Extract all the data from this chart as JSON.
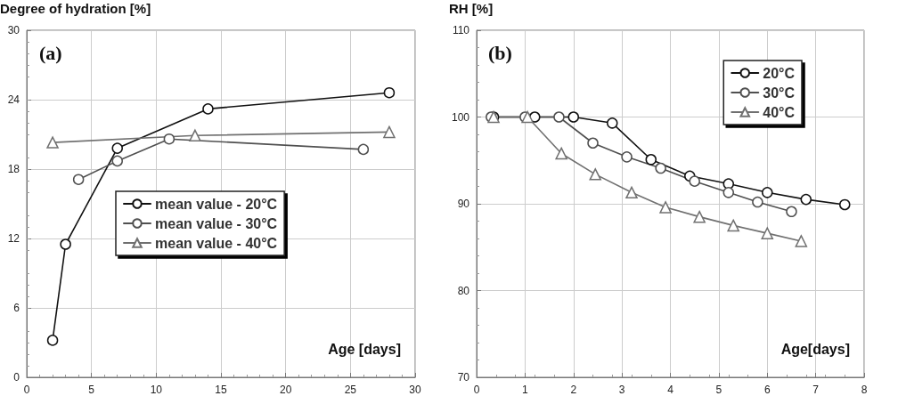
{
  "chart_data": [
    {
      "type": "line",
      "ylabel": "Degree of hydration [%]",
      "xlabel": "Age [days]",
      "annotations": [
        "(a)"
      ],
      "xlim": [
        0,
        30
      ],
      "xticks": [
        0,
        5,
        10,
        15,
        20,
        25,
        30
      ],
      "ylim": [
        0,
        30
      ],
      "yticks": [
        0,
        6,
        12,
        18,
        24,
        30
      ],
      "grid": true,
      "legend": "center",
      "line_style": "solid",
      "series": [
        {
          "name": "mean value - 20°C",
          "color": "#111111",
          "marker": "circle",
          "x": [
            2,
            3,
            7,
            14,
            28
          ],
          "values": [
            3.2,
            11.5,
            19.8,
            23.2,
            24.6
          ]
        },
        {
          "name": "mean value - 30°C",
          "color": "#505050",
          "marker": "circle",
          "x": [
            4,
            7,
            11,
            26
          ],
          "values": [
            17.1,
            18.7,
            20.6,
            19.7
          ]
        },
        {
          "name": "mean value - 40°C",
          "color": "#707070",
          "marker": "triangle",
          "x": [
            2,
            13,
            28
          ],
          "values": [
            20.3,
            20.9,
            21.2
          ]
        }
      ]
    },
    {
      "type": "line",
      "ylabel": "RH [%]",
      "xlabel": "Age[days]",
      "annotations": [
        "(b)"
      ],
      "xlim": [
        0,
        8
      ],
      "xticks": [
        0,
        1,
        2,
        3,
        4,
        5,
        6,
        7,
        8
      ],
      "ylim": [
        70,
        110
      ],
      "yticks": [
        70,
        80,
        90,
        100,
        110
      ],
      "grid": true,
      "legend": "top right",
      "line_style": "solid",
      "series": [
        {
          "name": "20°C",
          "color": "#111111",
          "marker": "circle",
          "x": [
            0.35,
            1.2,
            2.0,
            2.8,
            3.6,
            4.4,
            5.2,
            6.0,
            6.8,
            7.6
          ],
          "values": [
            100,
            100,
            100,
            99.3,
            95.1,
            93.2,
            92.3,
            91.3,
            90.5,
            89.9
          ]
        },
        {
          "name": "30°C",
          "color": "#505050",
          "marker": "circle",
          "x": [
            0.3,
            1.0,
            1.7,
            2.4,
            3.1,
            3.8,
            4.5,
            5.2,
            5.8,
            6.5
          ],
          "values": [
            100,
            100,
            100,
            97.0,
            95.4,
            94.1,
            92.6,
            91.3,
            90.2,
            89.1
          ]
        },
        {
          "name": "40°C",
          "color": "#707070",
          "marker": "triangle",
          "x": [
            0.35,
            1.05,
            1.75,
            2.45,
            3.2,
            3.9,
            4.6,
            5.3,
            6.0,
            6.7
          ],
          "values": [
            100,
            100,
            95.8,
            93.4,
            91.3,
            89.6,
            88.5,
            87.5,
            86.6,
            85.7
          ]
        }
      ]
    }
  ]
}
